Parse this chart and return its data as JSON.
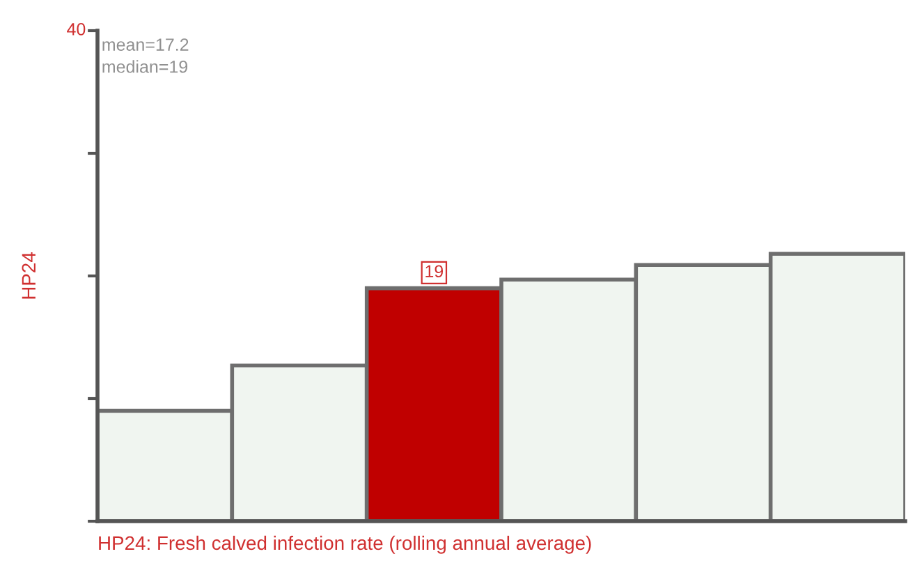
{
  "chart_data": {
    "type": "bar",
    "categories": [
      null,
      null,
      null,
      null,
      null,
      null
    ],
    "values": [
      9.0,
      12.7,
      19.0,
      19.7,
      20.9,
      21.8
    ],
    "colors": [
      "#f0f5f0",
      "#f0f5f0",
      "#c00000",
      "#f0f5f0",
      "#f0f5f0",
      "#f0f5f0"
    ],
    "value_labels": [
      null,
      null,
      "19",
      null,
      null,
      null
    ],
    "ylim": [
      0,
      40
    ],
    "yticks": [
      {
        "value": 0,
        "label": null
      },
      {
        "value": 10,
        "label": null
      },
      {
        "value": 20,
        "label": null
      },
      {
        "value": 30,
        "label": null
      },
      40
    ],
    "ylabel": "HP24",
    "xlabel": "HP24: Fresh calved infection rate (rolling annual average)",
    "annotations": [
      "mean=17.2",
      "median=19"
    ],
    "grid": false
  }
}
